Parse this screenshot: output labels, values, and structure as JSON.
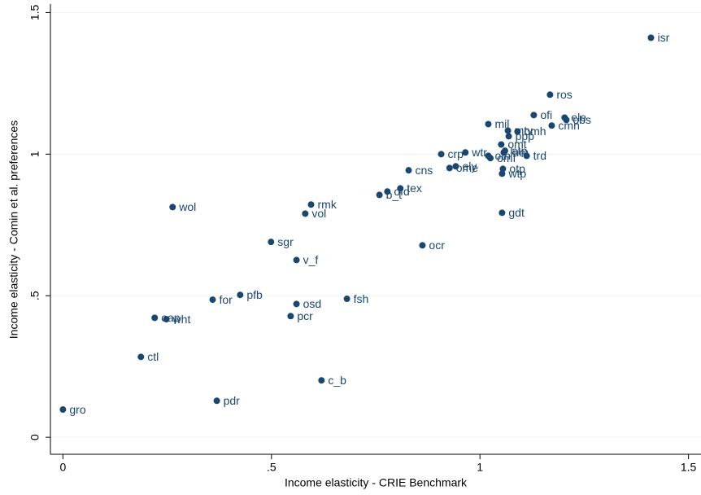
{
  "chart_data": {
    "type": "scatter",
    "x_label": "Income elasticity - CRIE  Benchmark",
    "y_label": "Income elasticity - Comin et al. preferences",
    "color": "#1a476f",
    "grid": true,
    "xlim": [
      -0.03,
      1.53
    ],
    "ylim": [
      -0.06,
      1.53
    ],
    "xticks": [
      0,
      {
        "value": 0.5,
        "label": ".5"
      },
      1,
      1.5
    ],
    "yticks": [
      0,
      {
        "value": 0.5,
        "label": ".5"
      },
      1,
      1.5
    ],
    "labels": [
      "isr",
      "ros",
      "ofi",
      "ele",
      "obs",
      "cmn",
      "mil",
      "mtv",
      "omh",
      "ppp",
      "omt",
      "crp",
      "wtr",
      "otn",
      "lum",
      "atp",
      "trd",
      "omf",
      "cns",
      "ome",
      "ely",
      "otp",
      "wtp",
      "gdt",
      "tex",
      "b_t",
      "ofd",
      "rmk",
      "vol",
      "wol",
      "sgr",
      "ocr",
      "v_f",
      "pfb",
      "for",
      "osd",
      "fsh",
      "pcr",
      "oap",
      "wht",
      "ctl",
      "c_b",
      "pdr",
      "gro"
    ],
    "x": [
      1.41,
      1.168,
      1.129,
      1.203,
      1.207,
      1.172,
      1.02,
      1.067,
      1.09,
      1.069,
      1.051,
      0.907,
      0.965,
      1.02,
      1.057,
      1.06,
      1.112,
      1.025,
      0.829,
      0.927,
      0.942,
      1.055,
      1.053,
      1.053,
      0.809,
      0.759,
      0.778,
      0.595,
      0.581,
      0.263,
      0.499,
      0.862,
      0.56,
      0.425,
      0.359,
      0.56,
      0.681,
      0.546,
      0.22,
      0.248,
      0.187,
      0.62,
      0.369,
      0.0
    ],
    "values": [
      1.411,
      1.21,
      1.138,
      1.129,
      1.121,
      1.101,
      1.106,
      1.083,
      1.08,
      1.063,
      1.034,
      1.0,
      1.006,
      0.994,
      1.006,
      1.012,
      0.994,
      0.986,
      0.943,
      0.951,
      0.957,
      0.948,
      0.931,
      0.793,
      0.879,
      0.856,
      0.868,
      0.822,
      0.79,
      0.813,
      0.69,
      0.678,
      0.626,
      0.503,
      0.486,
      0.471,
      0.489,
      0.428,
      0.422,
      0.417,
      0.284,
      0.201,
      0.129,
      0.098
    ]
  }
}
